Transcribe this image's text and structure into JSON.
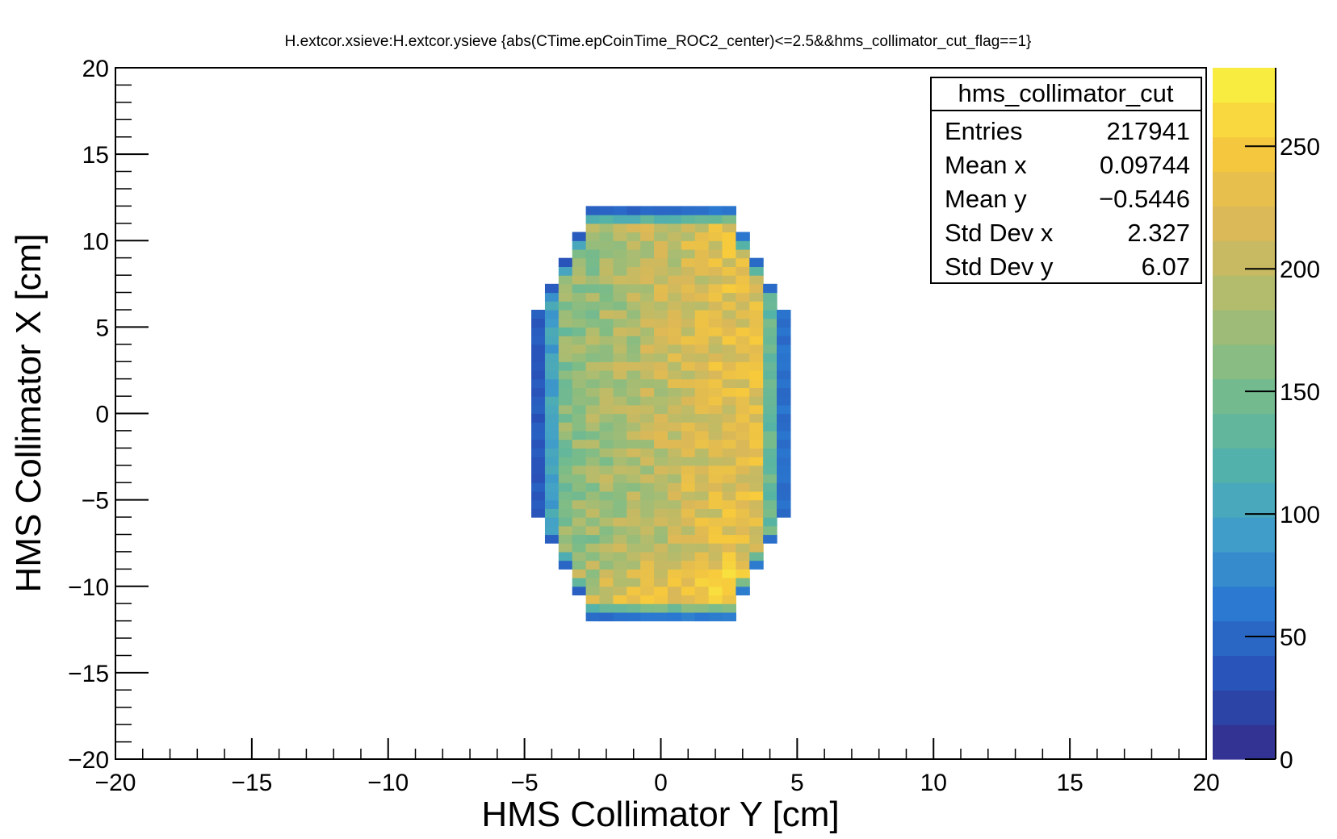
{
  "chart_data": {
    "type": "heatmap",
    "title": "H.extcor.xsieve:H.extcor.ysieve {abs(CTime.epCoinTime_ROC2_center)<=2.5&&hms_collimator_cut_flag==1}",
    "xlabel": "HMS Collimator Y [cm]",
    "ylabel": "HMS Collimator X [cm]",
    "xlim": [
      -20,
      20
    ],
    "ylim": [
      -20,
      20
    ],
    "x_ticks": [
      "−20",
      "−15",
      "−10",
      "−5",
      "0",
      "5",
      "10",
      "15",
      "20"
    ],
    "y_ticks": [
      "20",
      "15",
      "10",
      "5",
      "0",
      "−5",
      "−10",
      "−15",
      "−20"
    ],
    "colorbar": {
      "range": [
        0,
        282
      ],
      "ticks": [
        "0",
        "50",
        "100",
        "150",
        "200",
        "250"
      ],
      "palette": [
        "#352a87",
        "#2950b7",
        "#2a78d0",
        "#42a0c8",
        "#55b4a5",
        "#7fbc86",
        "#b0bc6e",
        "#dcb857",
        "#f7c93c",
        "#f9f642"
      ]
    },
    "bin_width": 0.5,
    "distribution": {
      "shape": "collimator octagon",
      "y_extent": [
        -4.75,
        4.75
      ],
      "x_extent": [
        -11.75,
        11.75
      ],
      "entries": 217941,
      "mean_x": 0.09744,
      "mean_y": -0.5446,
      "std_dev_x": 2.327,
      "std_dev_y": 6.07,
      "peak_content": 280
    },
    "stats_box": {
      "name": "hms_collimator_cut",
      "rows": [
        {
          "label": "Entries",
          "value": "217941"
        },
        {
          "label": "Mean x",
          "value": "0.09744"
        },
        {
          "label": "Mean y",
          "value": "−0.5446"
        },
        {
          "label": "Std Dev x",
          "value": "2.327"
        },
        {
          "label": "Std Dev y",
          "value": "6.07"
        }
      ]
    }
  }
}
